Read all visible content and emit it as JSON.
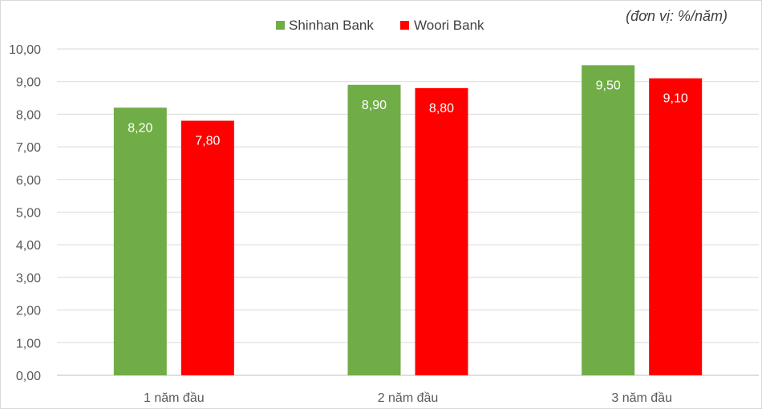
{
  "chart_data": {
    "type": "bar",
    "categories": [
      "1 năm đầu",
      "2 năm đầu",
      "3 năm đầu"
    ],
    "series": [
      {
        "name": "Shinhan Bank",
        "color": "#70ad47",
        "values": [
          8.2,
          8.9,
          9.5
        ],
        "labels": [
          "8,20",
          "8,90",
          "9,50"
        ]
      },
      {
        "name": "Woori Bank",
        "color": "#ff0000",
        "values": [
          7.8,
          8.8,
          9.1
        ],
        "labels": [
          "7,80",
          "8,80",
          "9,10"
        ]
      }
    ],
    "ylim": [
      0,
      10
    ],
    "yticks": [
      "0,00",
      "1,00",
      "2,00",
      "3,00",
      "4,00",
      "5,00",
      "6,00",
      "7,00",
      "8,00",
      "9,00",
      "10,00"
    ],
    "unit_note": "(đơn vị: %/năm)",
    "grid": true,
    "legend_position": "top-center"
  }
}
